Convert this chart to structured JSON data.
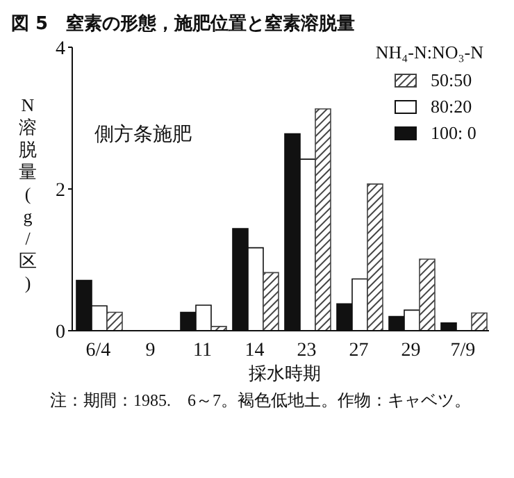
{
  "chart_data": {
    "type": "bar",
    "title": "図 5　窒素の形態，施肥位置と窒素溶脱量",
    "xlabel": "採水時期",
    "ylabel": "N溶脱量(g/区)",
    "legend_title": "NH₄-N:NO₃-N",
    "categories": [
      "6/4",
      "9",
      "11",
      "14",
      "23",
      "27",
      "29",
      "7/9"
    ],
    "series": [
      {
        "name": "100: 0",
        "color": "#111111",
        "values": [
          0.71,
          0,
          0.26,
          1.44,
          2.78,
          0.38,
          0.2,
          0.11
        ]
      },
      {
        "name": "80:20",
        "color": "#ffffff",
        "values": [
          0.35,
          0,
          0.36,
          1.17,
          2.42,
          0.73,
          0.29,
          0
        ]
      },
      {
        "name": "50:50",
        "color": "#444444",
        "values": [
          0.26,
          0,
          0.06,
          0.82,
          3.13,
          2.07,
          1.01,
          0.25
        ]
      }
    ],
    "ylim": [
      0,
      4
    ],
    "yticks": [
      0,
      2,
      4
    ],
    "grid": false,
    "legend": "top right",
    "annotations": [
      "側方条施肥",
      "注：期間：1985.　6～7。褐色低地土。作物：キャベツ。"
    ]
  }
}
